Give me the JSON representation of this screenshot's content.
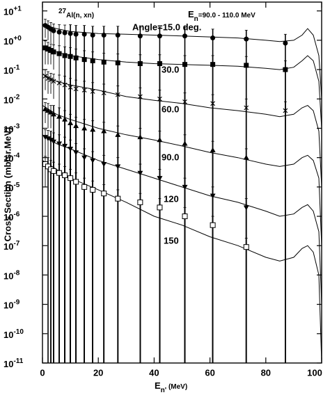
{
  "chart_data": {
    "type": "scatter",
    "title": "27Al(n, xn)",
    "subtitle": "En=90.0 - 110.0  MeV",
    "x_label": "En'  (MeV)",
    "y_label": "Cross  Section  (mb/sr.MeV)",
    "yscale": "log",
    "xlim": [
      0,
      100
    ],
    "ylim": [
      1e-11,
      20
    ],
    "xticks": [
      0,
      20,
      40,
      60,
      80,
      100
    ],
    "yticks": [
      {
        "value": 10,
        "label": "10+1"
      },
      {
        "value": 1,
        "label": "10+0"
      },
      {
        "value": 0.1,
        "label": "10-1"
      },
      {
        "value": 0.01,
        "label": "10-2"
      },
      {
        "value": 0.001,
        "label": "10-3"
      },
      {
        "value": 0.0001,
        "label": "10-4"
      },
      {
        "value": 1e-05,
        "label": "10-5"
      },
      {
        "value": 1e-06,
        "label": "10-6"
      },
      {
        "value": 1e-07,
        "label": "10-7"
      },
      {
        "value": 1e-08,
        "label": "10-8"
      },
      {
        "value": 1e-09,
        "label": "10-9"
      },
      {
        "value": 1e-10,
        "label": "10-10"
      },
      {
        "value": 1e-11,
        "label": "10-11"
      }
    ],
    "x": [
      1,
      2,
      3,
      4,
      6,
      8,
      10,
      12,
      15,
      18,
      22,
      27,
      35,
      42,
      51,
      61,
      73,
      87
    ],
    "curve_x": [
      0,
      5,
      10,
      20,
      30,
      40,
      50,
      60,
      70,
      80,
      85,
      90,
      93,
      95,
      97,
      99,
      100
    ],
    "series": [
      {
        "name": "Angle=15.0  deg.",
        "color": "#000000",
        "marker": "circle",
        "values": [
          3.2,
          2.8,
          2.4,
          2.1,
          1.9,
          1.8,
          1.7,
          1.6,
          1.6,
          1.5,
          1.5,
          1.5,
          1.4,
          1.4,
          1.4,
          1.2,
          1.1,
          0.8
        ],
        "errors": [
          2.0,
          1.8,
          1.6,
          1.5,
          1.5,
          1.5,
          1.7,
          1.6,
          1.6,
          1.5,
          1.5,
          1.5,
          1.4,
          1.4,
          1.4,
          1.2,
          1.1,
          0.8
        ],
        "curve": [
          3.5,
          2.5,
          2.0,
          1.7,
          1.6,
          1.5,
          1.4,
          1.3,
          1.2,
          1.0,
          0.9,
          1.0,
          1.5,
          2.5,
          1.5,
          0.3,
          0.01
        ]
      },
      {
        "name": "30.0",
        "color": "#000000",
        "marker": "square",
        "values": [
          0.55,
          0.5,
          0.45,
          0.4,
          0.35,
          0.3,
          0.28,
          0.25,
          0.22,
          0.2,
          0.18,
          0.17,
          0.16,
          0.16,
          0.15,
          0.15,
          0.14,
          0.1
        ],
        "errors": [
          0.4,
          0.35,
          0.3,
          0.3,
          0.3,
          0.3,
          0.28,
          0.25,
          0.22,
          0.2,
          0.18,
          0.17,
          0.16,
          0.16,
          0.15,
          0.15,
          0.14,
          0.1
        ],
        "curve": [
          0.6,
          0.4,
          0.3,
          0.22,
          0.18,
          0.16,
          0.15,
          0.14,
          0.13,
          0.11,
          0.1,
          0.12,
          0.2,
          0.3,
          0.2,
          0.04,
          0.001
        ]
      },
      {
        "name": "60.0",
        "color": "#000000",
        "marker": "x",
        "values": [
          0.06,
          0.05,
          0.045,
          0.04,
          0.035,
          0.03,
          0.025,
          0.022,
          0.02,
          0.018,
          0.016,
          0.014,
          0.012,
          0.01,
          0.008,
          0.007,
          0.005,
          0.004
        ],
        "errors": [
          0.04,
          0.035,
          0.03,
          0.03,
          0.03,
          0.03,
          0.025,
          0.022,
          0.02,
          0.018,
          0.016,
          0.014,
          0.012,
          0.01,
          0.008,
          0.007,
          0.005,
          0.004
        ],
        "curve": [
          0.07,
          0.04,
          0.03,
          0.02,
          0.012,
          0.009,
          0.007,
          0.005,
          0.004,
          0.003,
          0.0025,
          0.003,
          0.005,
          0.006,
          0.004,
          0.0008,
          1e-05
        ]
      },
      {
        "name": "90.0",
        "color": "#000000",
        "marker": "triangle-up",
        "values": [
          0.0045,
          0.004,
          0.0035,
          0.003,
          0.0025,
          0.002,
          0.0015,
          0.0012,
          0.001,
          0.0009,
          0.0008,
          0.0006,
          0.0005,
          0.0004,
          0.0003,
          0.00018,
          0.0001,
          null
        ],
        "errors": [
          0.003,
          0.003,
          0.0025,
          0.003,
          0.0025,
          0.002,
          0.0015,
          0.0012,
          0.001,
          0.0009,
          0.0008,
          0.0006,
          0.0005,
          0.0004,
          0.0003,
          0.00018,
          0.0001,
          null
        ],
        "curve": [
          0.006,
          0.003,
          0.002,
          0.001,
          0.0006,
          0.0004,
          0.00025,
          0.00015,
          0.0001,
          6e-05,
          5e-05,
          6e-05,
          0.0001,
          0.00012,
          8e-05,
          2e-05,
          1e-07
        ]
      },
      {
        "name": "120",
        "color": "#000000",
        "marker": "triangle-down",
        "values": [
          0.0005,
          0.00045,
          0.0004,
          0.00035,
          0.0003,
          0.00025,
          0.0002,
          0.00015,
          0.0001,
          8e-05,
          6e-05,
          5e-05,
          3e-05,
          2e-05,
          1e-05,
          5e-06,
          2e-06,
          null
        ],
        "errors": [
          0.0004,
          0.0004,
          0.0004,
          0.00035,
          0.0003,
          0.00025,
          0.0002,
          0.00015,
          0.0001,
          8e-05,
          6e-05,
          5e-05,
          3e-05,
          2e-05,
          1e-05,
          5e-06,
          2e-06,
          null
        ],
        "curve": [
          0.0006,
          0.0003,
          0.0002,
          8e-05,
          4e-05,
          2e-05,
          1e-05,
          5e-06,
          3e-06,
          1.5e-06,
          1e-06,
          1.2e-06,
          2e-06,
          2.5e-06,
          1.5e-06,
          3e-07,
          1e-09
        ]
      },
      {
        "name": "150",
        "color": "#000000",
        "marker": "square-open",
        "values": [
          6e-05,
          5e-05,
          4e-05,
          3.5e-05,
          3e-05,
          2.5e-05,
          2e-05,
          1.5e-05,
          1e-05,
          8e-06,
          6e-06,
          4e-06,
          3e-06,
          2e-06,
          1e-06,
          5e-07,
          9e-08,
          null
        ],
        "errors": [
          5e-05,
          5e-05,
          4e-05,
          3.5e-05,
          3e-05,
          2.5e-05,
          2e-05,
          1.5e-05,
          1e-05,
          8e-06,
          6e-06,
          4e-06,
          3e-06,
          2e-06,
          1e-06,
          5e-07,
          9e-08,
          null
        ],
        "curve": [
          8e-05,
          4e-05,
          2e-05,
          8e-06,
          3e-06,
          1e-06,
          5e-07,
          2e-07,
          1e-07,
          4e-08,
          3e-08,
          4e-08,
          8e-08,
          1e-07,
          6e-08,
          1e-08,
          1e-11
        ]
      }
    ]
  }
}
